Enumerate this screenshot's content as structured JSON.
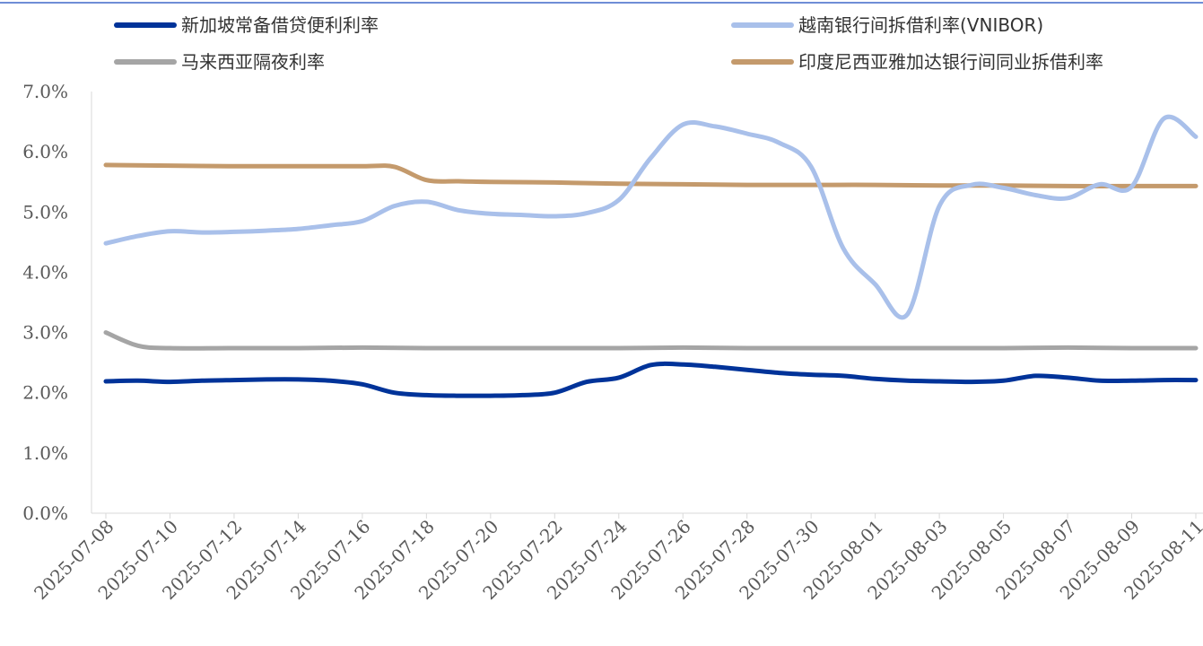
{
  "chart_data": {
    "type": "line",
    "title": "",
    "xlabel": "",
    "ylabel": "",
    "ylim": [
      0,
      7
    ],
    "yticks": [
      "0.0%",
      "1.0%",
      "2.0%",
      "3.0%",
      "4.0%",
      "5.0%",
      "6.0%",
      "7.0%"
    ],
    "yticks_values": [
      0,
      1,
      2,
      3,
      4,
      5,
      6,
      7
    ],
    "xticks": [
      "2025-07-08",
      "2025-07-10",
      "2025-07-12",
      "2025-07-14",
      "2025-07-16",
      "2025-07-18",
      "2025-07-20",
      "2025-07-22",
      "2025-07-24",
      "2025-07-26",
      "2025-07-28",
      "2025-07-30",
      "2025-08-01",
      "2025-08-03",
      "2025-08-05",
      "2025-08-07",
      "2025-08-09",
      "2025-08-11"
    ],
    "x_start": "2025-07-08",
    "x_end": "2025-08-11",
    "grid": false,
    "legend_position": "top",
    "series": [
      {
        "name": "新加坡常备借贷便利利率",
        "color": "#003399",
        "width": 5,
        "points": [
          [
            "2025-07-08",
            2.19
          ],
          [
            "2025-07-09",
            2.2
          ],
          [
            "2025-07-10",
            2.18
          ],
          [
            "2025-07-11",
            2.2
          ],
          [
            "2025-07-12",
            2.21
          ],
          [
            "2025-07-13",
            2.22
          ],
          [
            "2025-07-14",
            2.22
          ],
          [
            "2025-07-15",
            2.2
          ],
          [
            "2025-07-16",
            2.14
          ],
          [
            "2025-07-17",
            2.0
          ],
          [
            "2025-07-18",
            1.96
          ],
          [
            "2025-07-19",
            1.95
          ],
          [
            "2025-07-20",
            1.95
          ],
          [
            "2025-07-21",
            1.96
          ],
          [
            "2025-07-22",
            2.0
          ],
          [
            "2025-07-23",
            2.18
          ],
          [
            "2025-07-24",
            2.25
          ],
          [
            "2025-07-25",
            2.46
          ],
          [
            "2025-07-26",
            2.47
          ],
          [
            "2025-07-27",
            2.43
          ],
          [
            "2025-07-28",
            2.38
          ],
          [
            "2025-07-29",
            2.33
          ],
          [
            "2025-07-30",
            2.3
          ],
          [
            "2025-07-31",
            2.28
          ],
          [
            "2025-08-01",
            2.23
          ],
          [
            "2025-08-02",
            2.2
          ],
          [
            "2025-08-03",
            2.19
          ],
          [
            "2025-08-04",
            2.18
          ],
          [
            "2025-08-05",
            2.2
          ],
          [
            "2025-08-06",
            2.28
          ],
          [
            "2025-08-07",
            2.25
          ],
          [
            "2025-08-08",
            2.2
          ],
          [
            "2025-08-09",
            2.2
          ],
          [
            "2025-08-10",
            2.21
          ],
          [
            "2025-08-11",
            2.21
          ]
        ]
      },
      {
        "name": "越南银行间拆借利率(VNIBOR)",
        "color": "#A9C0EA",
        "width": 5,
        "points": [
          [
            "2025-07-08",
            4.48
          ],
          [
            "2025-07-09",
            4.6
          ],
          [
            "2025-07-10",
            4.68
          ],
          [
            "2025-07-11",
            4.66
          ],
          [
            "2025-07-12",
            4.67
          ],
          [
            "2025-07-13",
            4.69
          ],
          [
            "2025-07-14",
            4.72
          ],
          [
            "2025-07-15",
            4.78
          ],
          [
            "2025-07-16",
            4.85
          ],
          [
            "2025-07-17",
            5.1
          ],
          [
            "2025-07-18",
            5.17
          ],
          [
            "2025-07-19",
            5.03
          ],
          [
            "2025-07-20",
            4.97
          ],
          [
            "2025-07-21",
            4.95
          ],
          [
            "2025-07-22",
            4.93
          ],
          [
            "2025-07-23",
            4.98
          ],
          [
            "2025-07-24",
            5.2
          ],
          [
            "2025-07-25",
            5.9
          ],
          [
            "2025-07-26",
            6.45
          ],
          [
            "2025-07-27",
            6.42
          ],
          [
            "2025-07-28",
            6.3
          ],
          [
            "2025-07-29",
            6.15
          ],
          [
            "2025-07-30",
            5.75
          ],
          [
            "2025-07-31",
            4.4
          ],
          [
            "2025-08-01",
            3.8
          ],
          [
            "2025-08-02",
            3.3
          ],
          [
            "2025-08-03",
            5.1
          ],
          [
            "2025-08-04",
            5.45
          ],
          [
            "2025-08-05",
            5.4
          ],
          [
            "2025-08-06",
            5.28
          ],
          [
            "2025-08-07",
            5.23
          ],
          [
            "2025-08-08",
            5.46
          ],
          [
            "2025-08-09",
            5.42
          ],
          [
            "2025-08-10",
            6.55
          ],
          [
            "2025-08-11",
            6.25
          ]
        ]
      },
      {
        "name": "马来西亚隔夜利率",
        "color": "#A5A5A5",
        "width": 5,
        "points": [
          [
            "2025-07-08",
            3.0
          ],
          [
            "2025-07-09",
            2.78
          ],
          [
            "2025-07-10",
            2.74
          ],
          [
            "2025-07-12",
            2.74
          ],
          [
            "2025-07-14",
            2.74
          ],
          [
            "2025-07-16",
            2.75
          ],
          [
            "2025-07-18",
            2.74
          ],
          [
            "2025-07-20",
            2.74
          ],
          [
            "2025-07-22",
            2.74
          ],
          [
            "2025-07-24",
            2.74
          ],
          [
            "2025-07-26",
            2.75
          ],
          [
            "2025-07-28",
            2.74
          ],
          [
            "2025-07-30",
            2.74
          ],
          [
            "2025-08-01",
            2.74
          ],
          [
            "2025-08-03",
            2.74
          ],
          [
            "2025-08-05",
            2.74
          ],
          [
            "2025-08-07",
            2.75
          ],
          [
            "2025-08-09",
            2.74
          ],
          [
            "2025-08-11",
            2.74
          ]
        ]
      },
      {
        "name": "印度尼西亚雅加达银行间同业拆借利率",
        "color": "#C49A6C",
        "width": 5,
        "points": [
          [
            "2025-07-08",
            5.78
          ],
          [
            "2025-07-10",
            5.77
          ],
          [
            "2025-07-12",
            5.76
          ],
          [
            "2025-07-14",
            5.76
          ],
          [
            "2025-07-16",
            5.76
          ],
          [
            "2025-07-17",
            5.75
          ],
          [
            "2025-07-18",
            5.53
          ],
          [
            "2025-07-19",
            5.51
          ],
          [
            "2025-07-20",
            5.5
          ],
          [
            "2025-07-22",
            5.49
          ],
          [
            "2025-07-24",
            5.47
          ],
          [
            "2025-07-26",
            5.46
          ],
          [
            "2025-07-28",
            5.45
          ],
          [
            "2025-07-30",
            5.45
          ],
          [
            "2025-08-01",
            5.45
          ],
          [
            "2025-08-03",
            5.44
          ],
          [
            "2025-08-05",
            5.44
          ],
          [
            "2025-08-07",
            5.43
          ],
          [
            "2025-08-09",
            5.43
          ],
          [
            "2025-08-11",
            5.43
          ]
        ]
      }
    ]
  }
}
